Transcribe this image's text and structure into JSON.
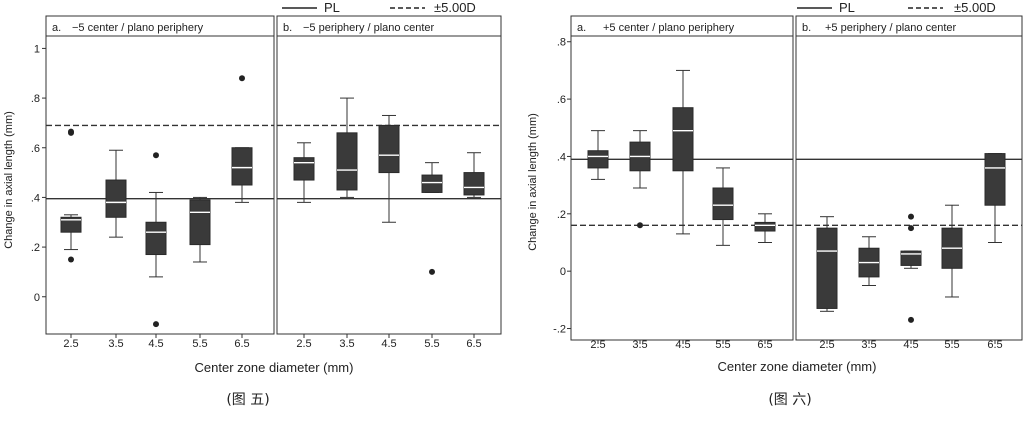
{
  "shared": {
    "ylabel": "Change in axial length (mm)",
    "xlabel": "Center zone diameter (mm)",
    "legend_pl": "PL",
    "legend_pm5": "±5.00D"
  },
  "figures": [
    {
      "caption": "(图 五)",
      "ylim": [
        -0.15,
        1.05
      ],
      "yticks": [
        {
          "v": 0,
          "label": "0"
        },
        {
          "v": 0.2,
          "label": ".2"
        },
        {
          "v": 0.4,
          "label": ".4"
        },
        {
          "v": 0.6,
          "label": ".6"
        },
        {
          "v": 0.8,
          "label": ".8"
        },
        {
          "v": 1.0,
          "label": "1"
        }
      ],
      "panels": [
        {
          "tag": "a.",
          "title": "−5 center / plano periphery"
        },
        {
          "tag": "b.",
          "title": "−5 periphery / plano center"
        }
      ]
    },
    {
      "caption": "(图 六)",
      "ylim": [
        -0.24,
        0.82
      ],
      "yticks": [
        {
          "v": -0.2,
          "label": "-.2"
        },
        {
          "v": 0,
          "label": "0"
        },
        {
          "v": 0.2,
          "label": ".2"
        },
        {
          "v": 0.4,
          "label": ".4"
        },
        {
          "v": 0.6,
          "label": ".6"
        },
        {
          "v": 0.8,
          "label": ".8"
        }
      ],
      "panels": [
        {
          "tag": "a.",
          "title": "+5 center / plano periphery"
        },
        {
          "tag": "b.",
          "title": "+5 periphery / plano center"
        }
      ]
    }
  ],
  "chart_data": [
    {
      "type": "box",
      "figure": 0,
      "panel": 0,
      "categories": [
        "2.5",
        "3.5",
        "4.5",
        "5.5",
        "6.5"
      ],
      "reference_lines": {
        "PL": 0.395,
        "±5.00D": 0.69
      },
      "boxes": [
        {
          "min": 0.19,
          "q1": 0.26,
          "median": 0.31,
          "q3": 0.32,
          "max": 0.33,
          "outliers": [
            0.15,
            0.66,
            0.665
          ]
        },
        {
          "min": 0.24,
          "q1": 0.32,
          "median": 0.38,
          "q3": 0.47,
          "max": 0.59,
          "outliers": []
        },
        {
          "min": 0.08,
          "q1": 0.17,
          "median": 0.26,
          "q3": 0.3,
          "max": 0.42,
          "outliers": [
            0.57,
            -0.11
          ]
        },
        {
          "min": 0.14,
          "q1": 0.21,
          "median": 0.34,
          "q3": 0.39,
          "max": 0.4,
          "outliers": []
        },
        {
          "min": 0.38,
          "q1": 0.45,
          "median": 0.52,
          "q3": 0.6,
          "max": 0.6,
          "outliers": [
            0.88
          ]
        }
      ]
    },
    {
      "type": "box",
      "figure": 0,
      "panel": 1,
      "categories": [
        "2.5",
        "3.5",
        "4.5",
        "5.5",
        "6.5"
      ],
      "reference_lines": {
        "PL": 0.395,
        "±5.00D": 0.69
      },
      "boxes": [
        {
          "min": 0.38,
          "q1": 0.47,
          "median": 0.54,
          "q3": 0.56,
          "max": 0.62,
          "outliers": []
        },
        {
          "min": 0.4,
          "q1": 0.43,
          "median": 0.51,
          "q3": 0.66,
          "max": 0.8,
          "outliers": []
        },
        {
          "min": 0.3,
          "q1": 0.5,
          "median": 0.57,
          "q3": 0.69,
          "max": 0.73,
          "outliers": []
        },
        {
          "min": 0.42,
          "q1": 0.42,
          "median": 0.46,
          "q3": 0.49,
          "max": 0.54,
          "outliers": [
            0.1
          ]
        },
        {
          "min": 0.4,
          "q1": 0.41,
          "median": 0.44,
          "q3": 0.5,
          "max": 0.58,
          "outliers": []
        }
      ]
    },
    {
      "type": "box",
      "figure": 1,
      "panel": 0,
      "categories": [
        "2.5",
        "3.5",
        "4.5",
        "5.5",
        "6.5"
      ],
      "reference_lines": {
        "PL": 0.39,
        "±5.00D": 0.16
      },
      "boxes": [
        {
          "min": 0.32,
          "q1": 0.36,
          "median": 0.4,
          "q3": 0.42,
          "max": 0.49,
          "outliers": []
        },
        {
          "min": 0.29,
          "q1": 0.35,
          "median": 0.4,
          "q3": 0.45,
          "max": 0.49,
          "outliers": [
            0.16
          ]
        },
        {
          "min": 0.13,
          "q1": 0.35,
          "median": 0.49,
          "q3": 0.57,
          "max": 0.7,
          "outliers": []
        },
        {
          "min": 0.09,
          "q1": 0.18,
          "median": 0.23,
          "q3": 0.29,
          "max": 0.36,
          "outliers": []
        },
        {
          "min": 0.1,
          "q1": 0.14,
          "median": 0.16,
          "q3": 0.17,
          "max": 0.2,
          "outliers": []
        }
      ]
    },
    {
      "type": "box",
      "figure": 1,
      "panel": 1,
      "categories": [
        "2.5",
        "3.5",
        "4.5",
        "5.5",
        "6.5"
      ],
      "reference_lines": {
        "PL": 0.39,
        "±5.00D": 0.16
      },
      "boxes": [
        {
          "min": -0.14,
          "q1": -0.13,
          "median": 0.07,
          "q3": 0.15,
          "max": 0.19,
          "outliers": []
        },
        {
          "min": -0.05,
          "q1": -0.02,
          "median": 0.03,
          "q3": 0.08,
          "max": 0.12,
          "outliers": []
        },
        {
          "min": 0.01,
          "q1": 0.02,
          "median": 0.06,
          "q3": 0.07,
          "max": 0.07,
          "outliers": [
            0.19,
            0.15,
            -0.17
          ]
        },
        {
          "min": -0.09,
          "q1": 0.01,
          "median": 0.08,
          "q3": 0.15,
          "max": 0.23,
          "outliers": []
        },
        {
          "min": 0.1,
          "q1": 0.23,
          "median": 0.36,
          "q3": 0.41,
          "max": 0.41,
          "outliers": []
        }
      ]
    }
  ]
}
